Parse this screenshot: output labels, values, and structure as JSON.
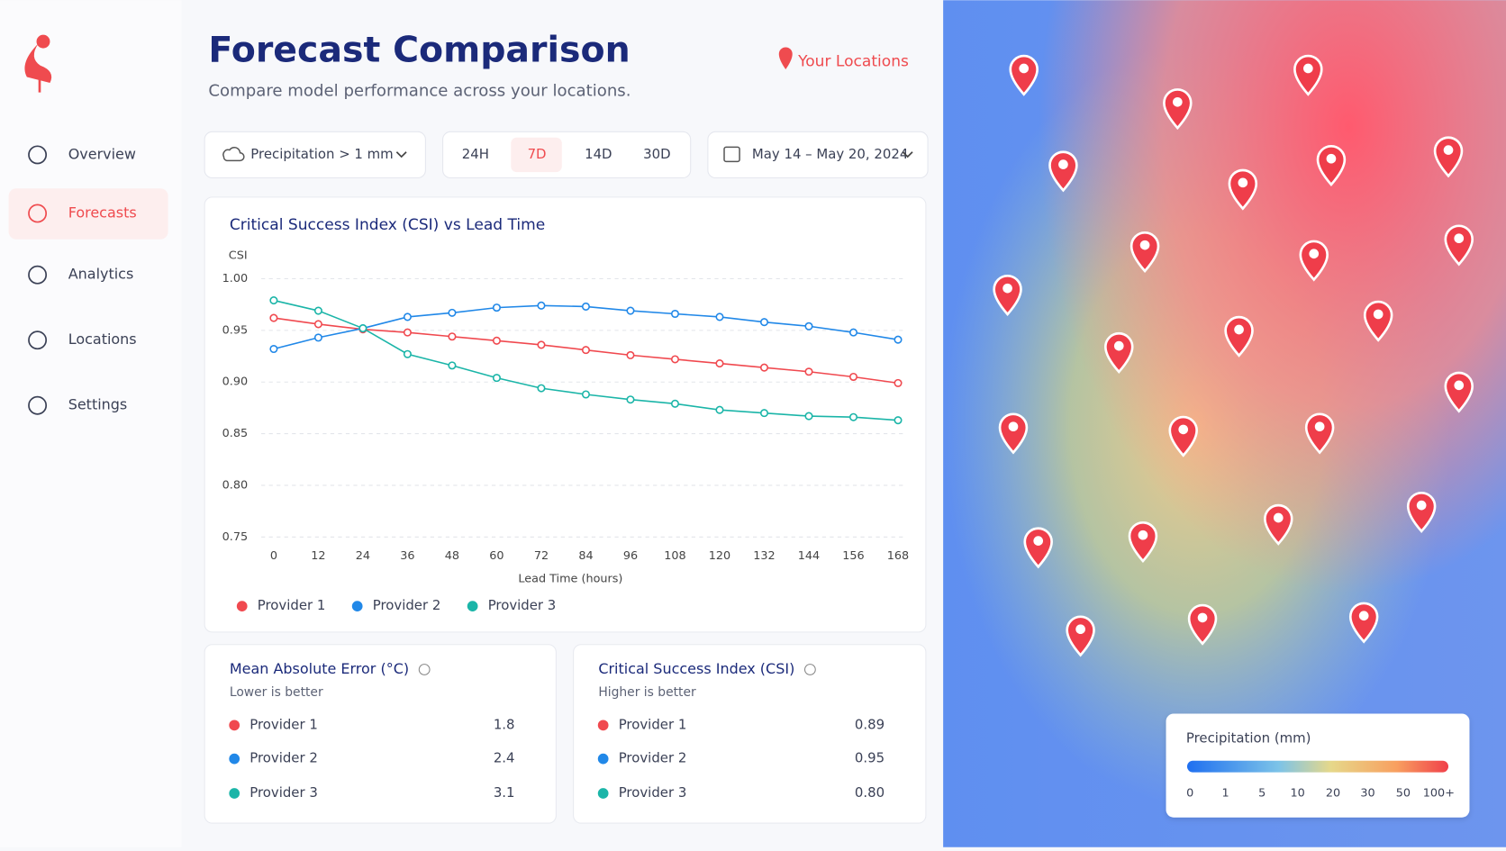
{
  "nav": [
    "Overview",
    "Forecasts",
    "Analytics",
    "Locations",
    "Settings"
  ],
  "header": {
    "title": "Forecast Comparison",
    "subtitle": "Compare model performance across your locations.",
    "locations": "Your Locations"
  },
  "filters": {
    "metric": "Precipitation > 1 mm",
    "ranges": [
      "24H",
      "7D",
      "14D",
      "30D"
    ],
    "dates": "May 14 – May 20, 2024"
  },
  "chart_data": {
    "type": "line",
    "title": "Critical Success Index (CSI) vs Lead Time",
    "y_label": "CSI",
    "x_label": "Lead Time (hours)",
    "x": [
      0,
      12,
      24,
      36,
      48,
      60,
      72,
      84,
      96,
      108,
      120,
      132,
      144,
      156,
      168
    ],
    "series": [
      {
        "name": "Provider 1",
        "color": "#f0494f",
        "values": [
          0.962,
          0.956,
          0.951,
          0.948,
          0.944,
          0.94,
          0.936,
          0.931,
          0.926,
          0.922,
          0.918,
          0.914,
          0.91,
          0.905,
          0.899
        ]
      },
      {
        "name": "Provider 2",
        "color": "#2188e8",
        "values": [
          0.932,
          0.943,
          0.952,
          0.963,
          0.967,
          0.972,
          0.974,
          0.973,
          0.969,
          0.966,
          0.963,
          0.958,
          0.954,
          0.948,
          0.941
        ]
      },
      {
        "name": "Provider 3",
        "color": "#1bb5a8",
        "values": [
          0.979,
          0.969,
          0.952,
          0.927,
          0.916,
          0.904,
          0.894,
          0.888,
          0.883,
          0.879,
          0.873,
          0.87,
          0.867,
          0.866,
          0.863
        ]
      }
    ],
    "xlim": [
      0,
      168
    ],
    "xticks": [
      0,
      12,
      24,
      36,
      48,
      60,
      72,
      84,
      96,
      108,
      120,
      132,
      144,
      156,
      168
    ],
    "ylim": [
      0.75,
      1.0
    ],
    "yticks": [
      0.75,
      {
        "value": 0.8,
        "label": "0.80"
      },
      0.85,
      {
        "value": 0.9,
        "label": "0.90"
      },
      0.95,
      {
        "value": 1.0,
        "label": "1.00"
      }
    ],
    "grid": true
  },
  "cards": [
    {
      "title": "Mean Absolute Error (°C)",
      "subtitle": "Lower is better",
      "rows": [
        {
          "name": "Provider 1",
          "value": "1.8"
        },
        {
          "name": "Provider 2",
          "value": "2.4"
        },
        {
          "name": "Provider 3",
          "value": "3.1"
        }
      ]
    },
    {
      "title": "Critical Success Index (CSI)",
      "subtitle": "Higher is better",
      "rows": [
        {
          "name": "Provider 1",
          "value": "0.89"
        },
        {
          "name": "Provider 2",
          "value": "0.95"
        },
        {
          "name": "Provider 3",
          "value": "0.80"
        }
      ]
    }
  ],
  "map_legend": {
    "title": "Precipitation (mm)",
    "labels": [
      "0",
      "1",
      "5",
      "10",
      "20",
      "30",
      "50",
      "100+"
    ]
  }
}
